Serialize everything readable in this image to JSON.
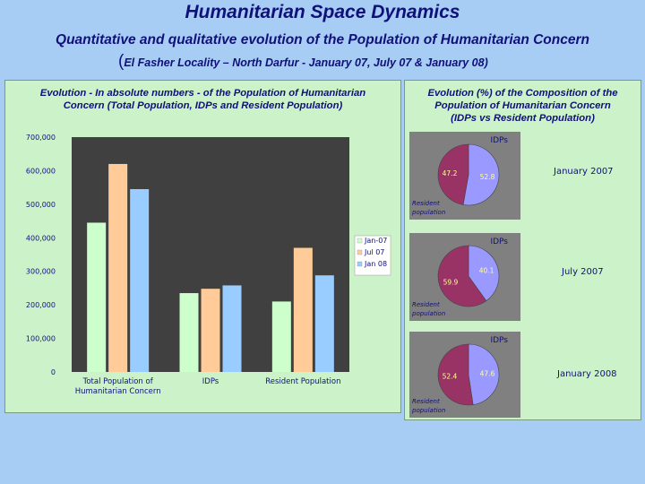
{
  "header": {
    "title": "Humanitarian Space Dynamics",
    "subtitle": "Quantitative and qualitative evolution of the Population of Humanitarian Concern",
    "subtitle_paren_open": "(",
    "subtitle_detail": "El Fasher Locality – North Darfur - January 07, July 07 & January 08",
    "subtitle_paren_close": ")"
  },
  "left_panel": {
    "title_line1": "Evolution - In absolute numbers - of the Population of Humanitarian",
    "title_line2": "Concern (Total Population, IDPs and Resident Population)"
  },
  "right_panel": {
    "title_line1": "Evolution (%) of the Composition of the",
    "title_line2": "Population of Humanitarian Concern",
    "title_line3": "(IDPs vs Resident Population)"
  },
  "chart_data": [
    {
      "type": "bar",
      "categories": [
        "Total Population of Humanitarian Concern",
        "IDPs",
        "Resident Population"
      ],
      "category_lines": [
        [
          "Total Population of",
          "Humanitarian Concern"
        ],
        [
          "IDPs"
        ],
        [
          "Resident Population"
        ]
      ],
      "series": [
        {
          "name": "Jan-07",
          "values": [
            445000,
            235000,
            210000
          ],
          "color": "#ccffcc"
        },
        {
          "name": "Jul 07",
          "values": [
            620000,
            248000,
            370000
          ],
          "color": "#ffcc99"
        },
        {
          "name": "Jan 08",
          "values": [
            545000,
            258000,
            288000
          ],
          "color": "#99ccff"
        }
      ],
      "ylim": [
        0,
        700000
      ],
      "yticks": [
        "0",
        "100,000",
        "200,000",
        "300,000",
        "400,000",
        "500,000",
        "600,000",
        "700,000"
      ],
      "ylabel": "",
      "xlabel": "",
      "grid": false,
      "legend": "right",
      "plot_background": "#404040"
    },
    {
      "type": "pie",
      "label": "January 2007",
      "slices": [
        {
          "name": "IDPs",
          "value": 52.8,
          "display": "52.8",
          "color": "#9999ff"
        },
        {
          "name": "Resident population",
          "value": 47.2,
          "display": "47.2",
          "color": "#993366"
        }
      ]
    },
    {
      "type": "pie",
      "label": "July 2007",
      "slices": [
        {
          "name": "IDPs",
          "value": 40.1,
          "display": "40.1",
          "color": "#9999ff"
        },
        {
          "name": "Resident population",
          "value": 59.9,
          "display": "59.9",
          "color": "#993366"
        }
      ]
    },
    {
      "type": "pie",
      "label": "January 2008",
      "slices": [
        {
          "name": "IDPs",
          "value": 47.6,
          "display": "47.6",
          "color": "#9999ff"
        },
        {
          "name": "Resident population",
          "value": 52.4,
          "display": "52.4",
          "color": "#993366"
        }
      ]
    }
  ]
}
